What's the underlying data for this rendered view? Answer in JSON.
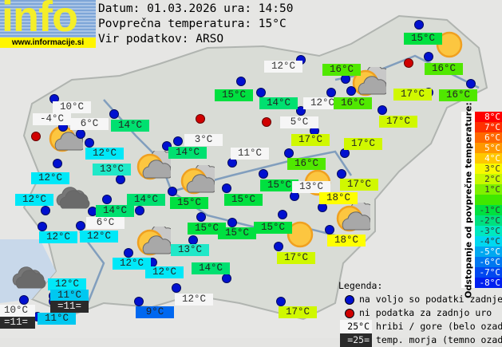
{
  "logo": {
    "text": "info",
    "url": "www.informacije.si"
  },
  "header": {
    "date_line": "Datum: 01.03.2026 ura: 14:50",
    "avg_line": "Povprečna temperatura: 15°C",
    "source_line": "Vir podatkov: ARSO"
  },
  "temp_colors": {
    "18": "#ffff00",
    "17": "#d0f800",
    "16": "#50e800",
    "15": "#00e040",
    "14": "#00e070",
    "13": "#20e8c8",
    "12": "#00e8f8",
    "11": "#00c8f0",
    "9": "#0068f0"
  },
  "labels": [
    {
      "t": "15°C",
      "k": "air"
    },
    {
      "t": "12°C",
      "k": "mountain"
    },
    {
      "t": "16°C",
      "k": "air"
    },
    {
      "t": "16°C",
      "k": "air"
    },
    {
      "t": "15°C",
      "k": "air"
    },
    {
      "t": "14°C",
      "k": "air"
    },
    {
      "t": "12°C",
      "k": "mountain"
    },
    {
      "t": "16°C",
      "k": "air"
    },
    {
      "t": "17°C",
      "k": "air"
    },
    {
      "t": "16°C",
      "k": "air"
    },
    {
      "t": "10°C",
      "k": "mountain"
    },
    {
      "t": "-4°C",
      "k": "mountain"
    },
    {
      "t": "6°C",
      "k": "mountain"
    },
    {
      "t": "14°C",
      "k": "air"
    },
    {
      "t": "5°C",
      "k": "mountain"
    },
    {
      "t": "17°C",
      "k": "air"
    },
    {
      "t": "3°C",
      "k": "mountain"
    },
    {
      "t": "17°C",
      "k": "air"
    },
    {
      "t": "17°C",
      "k": "air"
    },
    {
      "t": "12°C",
      "k": "air"
    },
    {
      "t": "14°C",
      "k": "air"
    },
    {
      "t": "11°C",
      "k": "mountain"
    },
    {
      "t": "13°C",
      "k": "air"
    },
    {
      "t": "16°C",
      "k": "air"
    },
    {
      "t": "12°C",
      "k": "air"
    },
    {
      "t": "15°C",
      "k": "air"
    },
    {
      "t": "13°C",
      "k": "mountain"
    },
    {
      "t": "17°C",
      "k": "air"
    },
    {
      "t": "12°C",
      "k": "air"
    },
    {
      "t": "14°C",
      "k": "air"
    },
    {
      "t": "15°C",
      "k": "air"
    },
    {
      "t": "15°C",
      "k": "air"
    },
    {
      "t": "18°C",
      "k": "air"
    },
    {
      "t": "14°C",
      "k": "air"
    },
    {
      "t": "6°C",
      "k": "mountain"
    },
    {
      "t": "15°C",
      "k": "air"
    },
    {
      "t": "15°C",
      "k": "air"
    },
    {
      "t": "15°C",
      "k": "air"
    },
    {
      "t": "18°C",
      "k": "air"
    },
    {
      "t": "12°C",
      "k": "air"
    },
    {
      "t": "12°C",
      "k": "air"
    },
    {
      "t": "13°C",
      "k": "air"
    },
    {
      "t": "17°C",
      "k": "air"
    },
    {
      "t": "12°C",
      "k": "air"
    },
    {
      "t": "12°C",
      "k": "air"
    },
    {
      "t": "14°C",
      "k": "air"
    },
    {
      "t": "12°C",
      "k": "air"
    },
    {
      "t": "11°C",
      "k": "air"
    },
    {
      "t": "=11=",
      "k": "sea"
    },
    {
      "t": "12°C",
      "k": "mountain"
    },
    {
      "t": "10°C",
      "k": "mountain"
    },
    {
      "t": "=11=",
      "k": "sea"
    },
    {
      "t": "11°C",
      "k": "air"
    },
    {
      "t": "9°C",
      "k": "air"
    },
    {
      "t": "17°C",
      "k": "air"
    }
  ],
  "weather_icons": [
    "partly-cloudy",
    "partly-cloudy",
    "partly-cloudy",
    "partly-cloudy",
    "partly-cloudy",
    "partly-cloudy",
    "cloudy",
    "cloudy",
    "sunny",
    "sunny",
    "sunny"
  ],
  "scale": {
    "title": "Odstopanje od povprečne temperature:",
    "cells": [
      {
        "label": "8°C",
        "color": "#ff0000"
      },
      {
        "label": "7°C",
        "color": "#ff3000"
      },
      {
        "label": "6°C",
        "color": "#ff6800"
      },
      {
        "label": "5°C",
        "color": "#ff9800"
      },
      {
        "label": "4°C",
        "color": "#ffc800"
      },
      {
        "label": "3°C",
        "color": "#f8f800"
      },
      {
        "label": "2°C",
        "color": "#c8f800"
      },
      {
        "label": "1°C",
        "color": "#80f000"
      },
      {
        "label": "",
        "color": "#40e800"
      },
      {
        "label": "-1°C",
        "color": "#00e040"
      },
      {
        "label": "-2°C",
        "color": "#00e080"
      },
      {
        "label": "-3°C",
        "color": "#00e8c0"
      },
      {
        "label": "-4°C",
        "color": "#00d8f0"
      },
      {
        "label": "-5°C",
        "color": "#00a8f0"
      },
      {
        "label": "-6°C",
        "color": "#0078f0"
      },
      {
        "label": "-7°C",
        "color": "#0048f0"
      },
      {
        "label": "-8°C",
        "color": "#0020f0"
      }
    ]
  },
  "legend": {
    "title": "Legenda:",
    "blue": "na voljo so podatki zadnje ure",
    "red": "ni podatka za zadnjo uro",
    "mountain_sample": "25°C",
    "mountain_text": "hribi / gore (belo ozadje)",
    "sea_sample": "=25=",
    "sea_text": "temp. morja (temno ozadje)"
  }
}
